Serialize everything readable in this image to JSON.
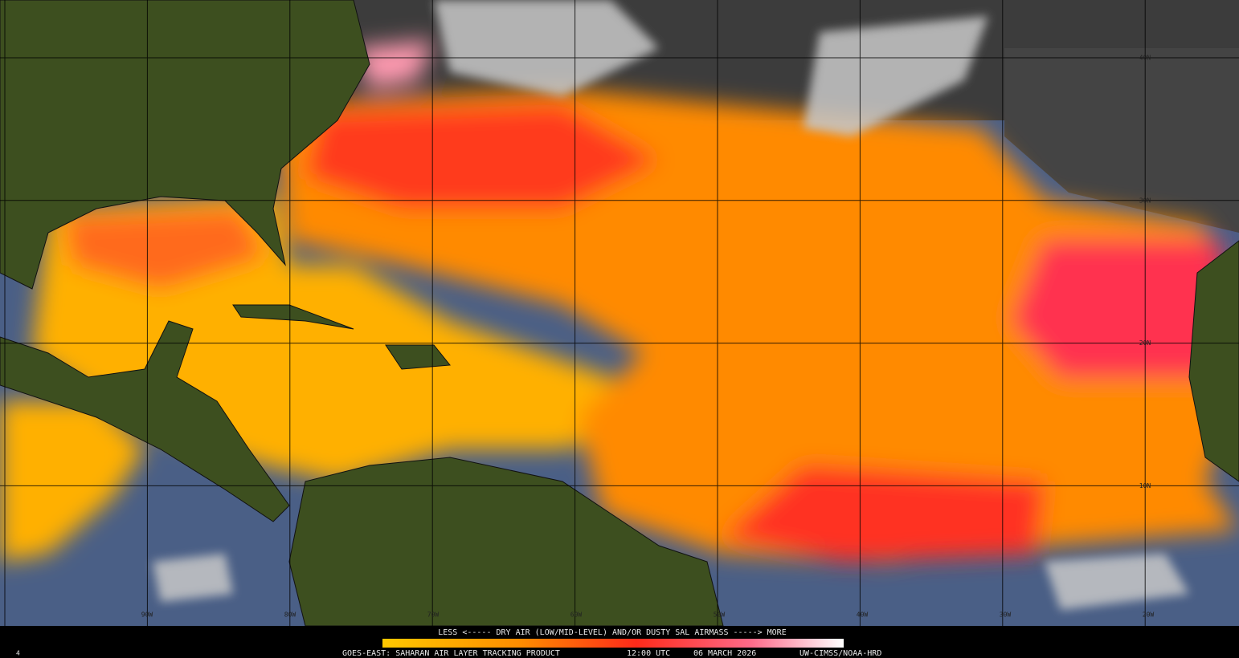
{
  "legend": {
    "text": "LESS <----- DRY AIR (LOW/MID-LEVEL) AND/OR DUSTY SAL AIRMASS -----> MORE"
  },
  "footer": {
    "frame": "4",
    "product": "GOES-EAST: SAHARAN AIR LAYER TRACKING PRODUCT",
    "time": "12:00 UTC",
    "date": "06 MARCH 2026",
    "credit": "UW-CIMSS/NOAA-HRD"
  },
  "grid": {
    "latitudes": [
      "40N",
      "30N",
      "20N",
      "10N"
    ],
    "longitudes": [
      "90W",
      "80W",
      "70W",
      "60W",
      "50W",
      "40W",
      "30W",
      "20W"
    ]
  }
}
